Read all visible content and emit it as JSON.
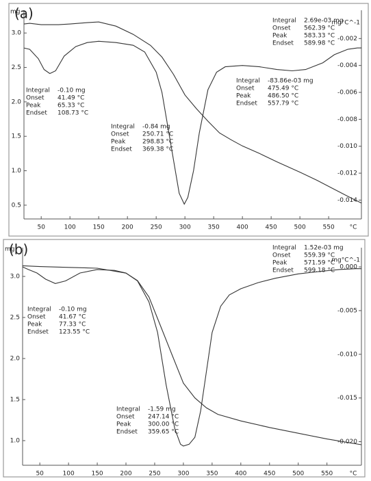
{
  "chart_data": [
    {
      "type": "line",
      "label": "(a)",
      "y_label": "mg",
      "y2_label": "mg°C^-1",
      "x_label": "°C",
      "xlim": [
        20,
        607
      ],
      "xticks": [
        50,
        100,
        150,
        200,
        250,
        300,
        350,
        400,
        450,
        500,
        550
      ],
      "ylim": [
        0.3,
        3.33
      ],
      "yticks": [
        0.5,
        {
          "value": 1,
          "label": "1.0"
        },
        1.5,
        {
          "value": 2,
          "label": "2.0"
        },
        2.5,
        {
          "value": 3,
          "label": "3.0"
        }
      ],
      "y2lim": [
        -0.0154,
        0.0001
      ],
      "y2ticks": [
        -0.002,
        -0.004,
        -0.006,
        -0.008,
        {
          "value": -0.01,
          "label": "-0.010"
        },
        -0.012,
        -0.014
      ],
      "series": [
        {
          "color": "#333333",
          "x": [
            20,
            30,
            50,
            80,
            100,
            130,
            150,
            180,
            210,
            240,
            260,
            280,
            300,
            320,
            340,
            360,
            380,
            400,
            430,
            460,
            500,
            530,
            560,
            590,
            607
          ],
          "values": [
            3.13,
            3.14,
            3.12,
            3.12,
            3.13,
            3.15,
            3.16,
            3.1,
            2.98,
            2.82,
            2.65,
            2.4,
            2.1,
            1.9,
            1.72,
            1.55,
            1.45,
            1.36,
            1.25,
            1.13,
            0.98,
            0.86,
            0.73,
            0.6,
            0.53
          ]
        },
        {
          "color": "#333333",
          "axis": "y2",
          "x": [
            20,
            30,
            45,
            55,
            65,
            75,
            90,
            110,
            130,
            150,
            180,
            210,
            230,
            250,
            260,
            270,
            280,
            290,
            298.83,
            305,
            315,
            325,
            340,
            355,
            370,
            400,
            430,
            460,
            486.5,
            510,
            540,
            560,
            583,
            600,
            607
          ],
          "values": [
            -0.0027,
            -0.0028,
            -0.0035,
            -0.0043,
            -0.0046,
            -0.0044,
            -0.0033,
            -0.0026,
            -0.0023,
            -0.0022,
            -0.0023,
            -0.0025,
            -0.003,
            -0.0045,
            -0.006,
            -0.0085,
            -0.011,
            -0.0135,
            -0.0143,
            -0.0138,
            -0.0118,
            -0.009,
            -0.0058,
            -0.0045,
            -0.0041,
            -0.004,
            -0.0041,
            -0.0043,
            -0.0044,
            -0.0043,
            -0.0038,
            -0.0032,
            -0.0028,
            -0.0027,
            -0.0027
          ]
        }
      ],
      "annotations": [
        {
          "rows": [
            [
              "Integral",
              "2.69e-03 mg"
            ],
            [
              "Onset",
              "562.39 °C"
            ],
            [
              "Peak",
              "583.33 °C"
            ],
            [
              "Endset",
              "589.98 °C"
            ]
          ]
        },
        {
          "rows": [
            [
              "Integral",
              "-83.86e-03 mg"
            ],
            [
              "Onset",
              "475.49 °C"
            ],
            [
              "Peak",
              "486.50 °C"
            ],
            [
              "Endset",
              "557.79 °C"
            ]
          ]
        },
        {
          "rows": [
            [
              "Integral",
              "-0.10 mg"
            ],
            [
              "Onset",
              "41.49 °C"
            ],
            [
              "Peak",
              "65.33 °C"
            ],
            [
              "Endset",
              "108.73 °C"
            ]
          ]
        },
        {
          "rows": [
            [
              "Integral",
              "-0.84 mg"
            ],
            [
              "Onset",
              "250.71 °C"
            ],
            [
              "Peak",
              "298.83 °C"
            ],
            [
              "Endset",
              "369.38 °C"
            ]
          ]
        }
      ]
    },
    {
      "type": "line",
      "label": "(b)",
      "y_label": "mg",
      "y2_label": "mg°C^-1",
      "x_label": "°C",
      "xlim": [
        20,
        610
      ],
      "xticks": [
        50,
        100,
        150,
        200,
        250,
        300,
        350,
        400,
        450,
        500,
        550
      ],
      "ylim": [
        0.7,
        3.35
      ],
      "yticks": [
        {
          "value": 1,
          "label": "1.0"
        },
        1.5,
        {
          "value": 2,
          "label": "2.0"
        },
        2.5,
        {
          "value": 3,
          "label": "3.0"
        }
      ],
      "y2lim": [
        -0.0227,
        0.0022
      ],
      "y2ticks": [
        {
          "value": 0,
          "label": "0.000"
        },
        -0.005,
        {
          "value": -0.01,
          "label": "-0.010"
        },
        -0.015,
        {
          "value": -0.02,
          "label": "-0.020"
        }
      ],
      "series": [
        {
          "color": "#333333",
          "x": [
            20,
            50,
            100,
            150,
            200,
            220,
            240,
            260,
            280,
            300,
            320,
            340,
            360,
            400,
            450,
            500,
            550,
            610
          ],
          "values": [
            3.13,
            3.12,
            3.11,
            3.1,
            3.04,
            2.95,
            2.75,
            2.4,
            2.05,
            1.7,
            1.52,
            1.4,
            1.32,
            1.24,
            1.16,
            1.09,
            1.02,
            0.95
          ]
        },
        {
          "color": "#333333",
          "axis": "y2",
          "x": [
            20,
            30,
            45,
            60,
            77,
            95,
            120,
            150,
            180,
            200,
            220,
            240,
            255,
            270,
            285,
            295,
            300,
            310,
            320,
            330,
            340,
            350,
            365,
            380,
            400,
            430,
            460,
            500,
            540,
            571.59,
            600,
            610
          ],
          "values": [
            0,
            -0.0003,
            -0.0007,
            -0.0014,
            -0.0019,
            -0.0016,
            -0.0007,
            -0.0003,
            -0.0004,
            -0.0007,
            -0.0016,
            -0.004,
            -0.0075,
            -0.0135,
            -0.0185,
            -0.0203,
            -0.0205,
            -0.0203,
            -0.0195,
            -0.0165,
            -0.012,
            -0.0075,
            -0.0045,
            -0.0032,
            -0.0025,
            -0.0018,
            -0.0013,
            -0.0008,
            -0.0005,
            -0.0003,
            -0.0002,
            -0.0002
          ]
        }
      ],
      "annotations": [
        {
          "rows": [
            [
              "Integral",
              "1.52e-03 mg"
            ],
            [
              "Onset",
              "559.39 °C"
            ],
            [
              "Peak",
              "571.59 °C"
            ],
            [
              "Endset",
              "599.18 °C"
            ]
          ]
        },
        {
          "rows": [
            [
              "Integral",
              "-0.10 mg"
            ],
            [
              "Onset",
              "41.67 °C"
            ],
            [
              "Peak",
              "77.33 °C"
            ],
            [
              "Endset",
              "123.55 °C"
            ]
          ]
        },
        {
          "rows": [
            [
              "Integral",
              "-1.59 mg"
            ],
            [
              "Onset",
              "247.14 °C"
            ],
            [
              "Peak",
              "300.00 °C"
            ],
            [
              "Endset",
              "359.65 °C"
            ]
          ]
        }
      ]
    }
  ]
}
